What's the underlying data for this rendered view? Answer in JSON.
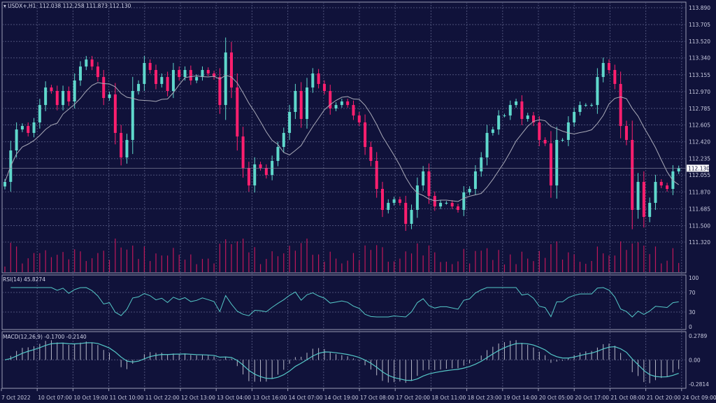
{
  "header": {
    "symbol": "USDX+,H1",
    "ohlc": "112.038 112.258 111.873 112.130"
  },
  "colors": {
    "background": "#10123a",
    "bull": "#5fd8cc",
    "bear": "#ff1f6e",
    "ma": "#a9aab8",
    "grid": "#4c5078",
    "volume": "#c0185a",
    "indicator": "#55c8c8"
  },
  "chart_data": [
    {
      "type": "candlestick",
      "title": "USDX+,H1",
      "ylim": [
        111.32,
        113.89
      ],
      "y_ticks": [
        "113.890",
        "113.705",
        "113.520",
        "113.340",
        "113.155",
        "112.970",
        "112.785",
        "112.605",
        "112.420",
        "112.235",
        "112.055",
        "111.870",
        "111.685",
        "111.500",
        "111.320"
      ],
      "x_ticks": [
        "7 Oct 2022",
        "10 Oct 07:00",
        "10 Oct 19:00",
        "11 Oct 10:00",
        "11 Oct 22:00",
        "12 Oct 13:00",
        "13 Oct 04:00",
        "13 Oct 16:00",
        "14 Oct 07:00",
        "14 Oct 19:00",
        "17 Oct 08:00",
        "17 Oct 20:00",
        "18 Oct 11:00",
        "18 Oct 23:00",
        "19 Oct 14:00",
        "20 Oct 05:00",
        "20 Oct 17:00",
        "21 Oct 08:00",
        "21 Oct 20:00",
        "24 Oct 09:00"
      ],
      "current_price": "112.130",
      "grid": true,
      "overlay": "moving average",
      "closes": [
        111.98,
        112.325,
        112.555,
        112.593,
        112.517,
        112.632,
        112.823,
        113.015,
        112.977,
        112.823,
        112.977,
        112.862,
        113.092,
        113.245,
        113.322,
        113.245,
        113.13,
        112.9,
        112.939,
        112.517,
        112.248,
        112.44,
        112.977,
        113.054,
        113.284,
        113.207,
        113.054,
        113.13,
        112.977,
        113.207,
        113.13,
        113.207,
        113.092,
        113.13,
        113.207,
        113.169,
        113.13,
        112.823,
        113.399,
        113.015,
        112.478,
        112.133,
        111.941,
        112.172,
        112.133,
        112.056,
        112.21,
        112.363,
        112.517,
        112.747,
        112.977,
        112.67,
        113.015,
        113.169,
        113.054,
        112.977,
        112.785,
        112.823,
        112.862,
        112.823,
        112.708,
        112.632,
        112.363,
        112.21,
        111.903,
        111.673,
        111.75,
        111.788,
        111.75,
        111.52,
        111.673,
        111.941,
        112.095,
        111.826,
        111.711,
        111.75,
        111.75,
        111.711,
        111.673,
        111.865,
        111.903,
        112.095,
        112.248,
        112.517,
        112.555,
        112.708,
        112.708,
        112.823,
        112.862,
        112.67,
        112.708,
        112.632,
        112.44,
        112.402,
        111.941,
        112.44,
        112.44,
        112.632,
        112.747,
        112.823,
        112.823,
        112.823,
        113.13,
        113.284,
        113.207,
        113.054,
        112.593,
        112.44,
        111.673,
        111.98,
        111.596,
        111.75,
        111.98,
        111.941,
        111.903,
        112.095,
        112.13
      ]
    },
    {
      "type": "line",
      "title": "RSI(14) 45.8274",
      "ylim": [
        0,
        100
      ],
      "y_ticks": [
        "100",
        "70",
        "30",
        "0"
      ]
    },
    {
      "type": "bar+line",
      "title": "MACD(12,26,9) -0.1700 -0.2140",
      "ylim": [
        -0.2814,
        0.2789
      ],
      "y_ticks": [
        "0.2789",
        "0.00",
        "-0.2814"
      ]
    }
  ]
}
